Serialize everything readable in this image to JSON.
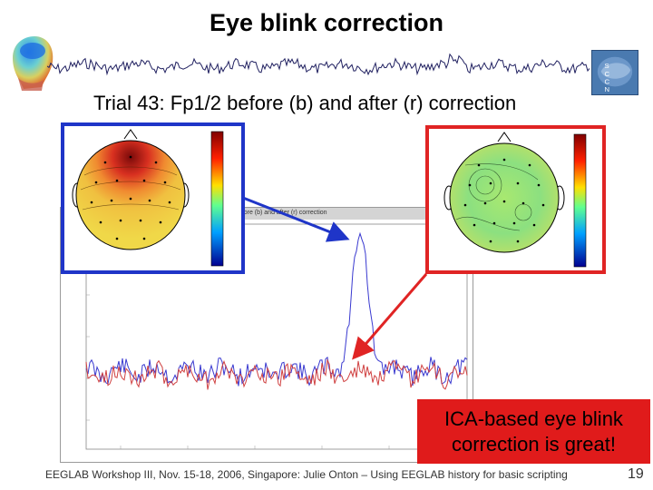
{
  "slide": {
    "title": "Eye blink correction",
    "subtitle": "Trial 43: Fp1/2 before (b) and after (r) correction",
    "plot_caption": "before (b) and after (r) correction",
    "callout": {
      "line1": "ICA-based eye blink",
      "line2": "correction is great!"
    },
    "footer": "EEGLAB Workshop III, Nov. 15-18, 2006, Singapore: Julie Onton – Using EEGLAB history for basic scripting",
    "page_number": "19"
  },
  "logos": {
    "sccn_letters": [
      "S",
      "C",
      "C",
      "N"
    ]
  },
  "colors": {
    "before_frame": "#1f35c8",
    "after_frame": "#e02424",
    "callout_bg": "#e01b1b",
    "trace_before": "#3a3ad0",
    "trace_after": "#d04040"
  },
  "icons": [
    "head-map-icon",
    "eeg-strip-icon",
    "sccn-logo-icon"
  ]
}
